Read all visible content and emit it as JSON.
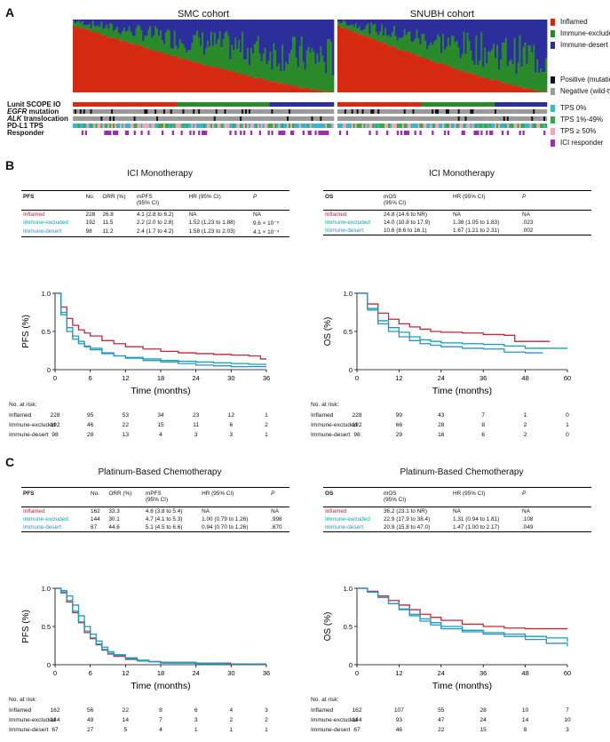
{
  "colors": {
    "inflamed": "#d42a12",
    "excluded": "#2a8a2a",
    "desert": "#2c2e9c",
    "km_inflamed": "#c0273b",
    "km_excluded": "#0aa5a8",
    "km_desert": "#2f8fd0",
    "positive": "#111111",
    "negative": "#9a9a9a",
    "tps0": "#3bb4c8",
    "tps1": "#3aa64a",
    "tps50": "#f2a9b5",
    "responder": "#9b2fb0"
  },
  "panel_a": {
    "letter": "A",
    "cohorts": [
      "SMC cohort",
      "SNUBH cohort"
    ],
    "legend_types": [
      "Inflamed",
      "Immune-excluded",
      "Immune-desert"
    ],
    "legend_mutation": [
      "Positive (mutation)",
      "Negative (wild-type)"
    ],
    "legend_tps": [
      "TPS 0%",
      "TPS 1%-49%",
      "TPS ≥ 50%",
      "ICI responder"
    ],
    "tracks": [
      "Lunit SCOPE IO",
      "EGFR",
      "mutation",
      "ALK",
      "translocation",
      "PD-L1 TPS",
      "Responder"
    ]
  },
  "panel_b": {
    "letter": "B",
    "pfs_title": "ICI Monotherapy",
    "os_title": "ICI Monotherapy",
    "pfs_table": {
      "headers": [
        "PFS",
        "No.",
        "ORR (%)",
        "mPFS",
        "(95% CI)",
        "HR (95% CI)",
        "P"
      ],
      "rows": [
        [
          "Inflamed",
          "228",
          "26.8",
          "4.1 (2.8 to 6.2)",
          "NA",
          "NA"
        ],
        [
          "Immune-excluded",
          "192",
          "11.5",
          "2.2 (2.0 to 2.8)",
          "1.52 (1.23 to 1.88)",
          "9.6 × 10⁻⁵"
        ],
        [
          "Immune-desert",
          "98",
          "11.2",
          "2.4 (1.7 to 4.2)",
          "1.58 (1.23 to 2.03)",
          "4.1 × 10⁻⁴"
        ]
      ]
    },
    "os_table": {
      "headers": [
        "OS",
        "mOS",
        "(95% CI)",
        "HR (95% CI)",
        "P"
      ],
      "rows": [
        [
          "Inflamed",
          "24.8 (14.6 to NR)",
          "NA",
          "NA"
        ],
        [
          "Immune-excluded",
          "14.0 (10.8 to 17.9)",
          "1.38 (1.05 to 1.83)",
          ".023"
        ],
        [
          "Immune-desert",
          "10.6 (8.6 to 16.1)",
          "1.67 (1.21 to 2.31)",
          ".002"
        ]
      ]
    },
    "pfs_risk": {
      "title": "No. at risk:",
      "rows": [
        {
          "label": "Inflamed",
          "values": [
            "228",
            "95",
            "53",
            "34",
            "23",
            "12",
            "1"
          ]
        },
        {
          "label": "Immune-excluded",
          "values": [
            "192",
            "46",
            "22",
            "15",
            "11",
            "6",
            "2"
          ]
        },
        {
          "label": "Immune-desert",
          "values": [
            "98",
            "28",
            "13",
            "4",
            "3",
            "3",
            "1"
          ]
        }
      ]
    },
    "os_risk": {
      "title": "No. at risk:",
      "rows": [
        {
          "label": "Inflamed",
          "values": [
            "228",
            "99",
            "43",
            "7",
            "1",
            "0"
          ]
        },
        {
          "label": "Immune-excluded",
          "values": [
            "192",
            "66",
            "28",
            "8",
            "2",
            "1"
          ]
        },
        {
          "label": "Immune-desert",
          "values": [
            "98",
            "29",
            "16",
            "6",
            "2",
            "0"
          ]
        }
      ]
    }
  },
  "panel_c": {
    "letter": "C",
    "pfs_title": "Platinum-Based Chemotherapy",
    "os_title": "Platinum-Based Chemotherapy",
    "pfs_table": {
      "headers": [
        "PFS",
        "No.",
        "ORR (%)",
        "mPFS",
        "(95% CI)",
        "HR (95% CI)",
        "P"
      ],
      "rows": [
        [
          "Inflamed",
          "162",
          "33.3",
          "4.6 (3.8 to 5.4)",
          "NA",
          "NA"
        ],
        [
          "Immune-excluded",
          "144",
          "30.1",
          "4.7 (4.1 to 5.3)",
          "1.00 (0.79 to 1.26)",
          ".998"
        ],
        [
          "Immune-desert",
          "67",
          "44.6",
          "5.1 (4.5 to 6.6)",
          "0.94 (0.70 to 1.26)",
          ".670"
        ]
      ]
    },
    "os_table": {
      "headers": [
        "OS",
        "mOS",
        "(95% CI)",
        "HR (95% CI)",
        "P"
      ],
      "rows": [
        [
          "Inflamed",
          "36.2 (23.1 to NR)",
          "NA",
          "NA"
        ],
        [
          "Immune-excluded",
          "22.9 (17.9 to 38.4)",
          "1.31 (0.94 to 1.81)",
          ".108"
        ],
        [
          "Immune-desert",
          "20.9 (15.8 to 47.0)",
          "1.47 (1.00 to 2.17)",
          ".049"
        ]
      ]
    },
    "pfs_risk": {
      "title": "No. at risk:",
      "rows": [
        {
          "label": "Inflamed",
          "values": [
            "162",
            "56",
            "22",
            "8",
            "6",
            "4",
            "3"
          ]
        },
        {
          "label": "Immune-excluded",
          "values": [
            "144",
            "49",
            "14",
            "7",
            "3",
            "2",
            "2"
          ]
        },
        {
          "label": "Immune-desert",
          "values": [
            "67",
            "27",
            "5",
            "4",
            "1",
            "1",
            "1"
          ]
        }
      ]
    },
    "os_risk": {
      "title": "No. at risk:",
      "rows": [
        {
          "label": "Inflamed",
          "values": [
            "162",
            "107",
            "55",
            "28",
            "10",
            "7"
          ]
        },
        {
          "label": "Immune-excluded",
          "values": [
            "144",
            "93",
            "47",
            "24",
            "14",
            "10"
          ]
        },
        {
          "label": "Immune-desert",
          "values": [
            "67",
            "46",
            "22",
            "15",
            "8",
            "3"
          ]
        }
      ]
    }
  },
  "chart_data": [
    {
      "type": "line",
      "title": "ICI Monotherapy",
      "xlabel": "Time (months)",
      "ylabel": "PFS (%)",
      "xlim": [
        0,
        36
      ],
      "ylim": [
        0,
        1.0
      ],
      "xticks": [
        0,
        6,
        12,
        18,
        24,
        30,
        36
      ],
      "yticks": [
        "1.0",
        "0.5",
        "0"
      ],
      "series": [
        {
          "name": "Inflamed",
          "x": [
            0,
            1,
            2,
            3,
            4,
            5,
            6,
            8,
            10,
            12,
            15,
            18,
            21,
            24,
            27,
            30,
            33,
            35,
            36
          ],
          "y": [
            1,
            0.82,
            0.67,
            0.58,
            0.52,
            0.48,
            0.44,
            0.38,
            0.34,
            0.3,
            0.27,
            0.24,
            0.22,
            0.21,
            0.2,
            0.19,
            0.18,
            0.14,
            0.14
          ]
        },
        {
          "name": "Immune-excluded",
          "x": [
            0,
            1,
            2,
            3,
            4,
            5,
            6,
            8,
            10,
            12,
            15,
            18,
            21,
            24,
            27,
            30,
            33,
            36
          ],
          "y": [
            1,
            0.72,
            0.5,
            0.4,
            0.34,
            0.3,
            0.26,
            0.21,
            0.18,
            0.16,
            0.14,
            0.12,
            0.11,
            0.1,
            0.09,
            0.08,
            0.07,
            0.07
          ]
        },
        {
          "name": "Immune-desert",
          "x": [
            0,
            1,
            2,
            3,
            4,
            5,
            6,
            8,
            10,
            12,
            15,
            18,
            21,
            24,
            27,
            30,
            33,
            36
          ],
          "y": [
            1,
            0.75,
            0.55,
            0.44,
            0.37,
            0.31,
            0.28,
            0.22,
            0.18,
            0.15,
            0.12,
            0.1,
            0.08,
            0.06,
            0.05,
            0.04,
            0.04,
            0.04
          ]
        }
      ]
    },
    {
      "type": "line",
      "title": "ICI Monotherapy",
      "xlabel": "Time (months)",
      "ylabel": "OS (%)",
      "xlim": [
        0,
        60
      ],
      "ylim": [
        0,
        1.0
      ],
      "xticks": [
        0,
        12,
        24,
        36,
        48,
        60
      ],
      "yticks": [
        "1.0",
        "0.5",
        "0"
      ],
      "series": [
        {
          "name": "Inflamed",
          "x": [
            0,
            3,
            6,
            9,
            12,
            15,
            18,
            21,
            24,
            30,
            36,
            42,
            45,
            48,
            55
          ],
          "y": [
            1,
            0.86,
            0.74,
            0.66,
            0.6,
            0.56,
            0.53,
            0.5,
            0.49,
            0.48,
            0.46,
            0.45,
            0.37,
            0.37,
            0.37
          ]
        },
        {
          "name": "Immune-excluded",
          "x": [
            0,
            3,
            6,
            9,
            12,
            15,
            18,
            21,
            24,
            30,
            36,
            42,
            48,
            52,
            60
          ],
          "y": [
            1,
            0.8,
            0.64,
            0.55,
            0.49,
            0.43,
            0.39,
            0.37,
            0.35,
            0.34,
            0.33,
            0.31,
            0.28,
            0.28,
            0.28
          ]
        },
        {
          "name": "Immune-desert",
          "x": [
            0,
            3,
            6,
            9,
            12,
            15,
            18,
            21,
            24,
            30,
            36,
            42,
            48,
            53
          ],
          "y": [
            1,
            0.78,
            0.6,
            0.5,
            0.43,
            0.38,
            0.34,
            0.32,
            0.3,
            0.28,
            0.27,
            0.23,
            0.22,
            0.22
          ]
        }
      ]
    },
    {
      "type": "line",
      "title": "Platinum-Based Chemotherapy",
      "xlabel": "Time (months)",
      "ylabel": "PFS (%)",
      "xlim": [
        0,
        36
      ],
      "ylim": [
        0,
        1.0
      ],
      "xticks": [
        0,
        6,
        12,
        18,
        24,
        30,
        36
      ],
      "yticks": [
        "1.0",
        "0.5",
        "0"
      ],
      "series": [
        {
          "name": "Inflamed",
          "x": [
            0,
            1,
            2,
            3,
            4,
            5,
            6,
            7,
            8,
            9,
            10,
            12,
            14,
            16,
            18,
            24,
            30
          ],
          "y": [
            1,
            0.94,
            0.82,
            0.68,
            0.55,
            0.42,
            0.34,
            0.26,
            0.19,
            0.14,
            0.11,
            0.07,
            0.05,
            0.04,
            0.03,
            0.02,
            0.02
          ]
        },
        {
          "name": "Immune-excluded",
          "x": [
            0,
            1,
            2,
            3,
            4,
            5,
            6,
            7,
            8,
            9,
            10,
            12,
            14,
            16,
            18,
            24,
            29
          ],
          "y": [
            1,
            0.95,
            0.84,
            0.7,
            0.56,
            0.44,
            0.35,
            0.27,
            0.2,
            0.15,
            0.12,
            0.08,
            0.05,
            0.04,
            0.03,
            0.02,
            0.02
          ]
        },
        {
          "name": "Immune-desert",
          "x": [
            0,
            1,
            2,
            3,
            4,
            5,
            6,
            7,
            8,
            9,
            10,
            12,
            14,
            16,
            18,
            24,
            36
          ],
          "y": [
            1,
            0.97,
            0.9,
            0.78,
            0.64,
            0.5,
            0.4,
            0.31,
            0.23,
            0.17,
            0.13,
            0.09,
            0.06,
            0.04,
            0.02,
            0.01,
            0.01
          ]
        }
      ]
    },
    {
      "type": "line",
      "title": "Platinum-Based Chemotherapy",
      "xlabel": "Time (months)",
      "ylabel": "OS (%)",
      "xlim": [
        0,
        60
      ],
      "ylim": [
        0,
        1.0
      ],
      "xticks": [
        0,
        12,
        24,
        36,
        48,
        60
      ],
      "yticks": [
        "1.0",
        "0.5",
        "0"
      ],
      "series": [
        {
          "name": "Inflamed",
          "x": [
            0,
            3,
            6,
            9,
            12,
            15,
            18,
            21,
            24,
            30,
            36,
            42,
            48,
            54,
            60
          ],
          "y": [
            1,
            0.96,
            0.9,
            0.84,
            0.78,
            0.72,
            0.66,
            0.62,
            0.58,
            0.53,
            0.5,
            0.48,
            0.47,
            0.47,
            0.47
          ]
        },
        {
          "name": "Immune-excluded",
          "x": [
            0,
            3,
            6,
            9,
            12,
            15,
            18,
            21,
            24,
            30,
            36,
            42,
            48,
            54,
            60
          ],
          "y": [
            1,
            0.95,
            0.88,
            0.8,
            0.73,
            0.66,
            0.6,
            0.55,
            0.5,
            0.45,
            0.42,
            0.4,
            0.37,
            0.35,
            0.3
          ]
        },
        {
          "name": "Immune-desert",
          "x": [
            0,
            3,
            6,
            9,
            12,
            15,
            18,
            21,
            24,
            30,
            36,
            42,
            48,
            54,
            60
          ],
          "y": [
            1,
            0.95,
            0.88,
            0.8,
            0.72,
            0.64,
            0.57,
            0.52,
            0.47,
            0.43,
            0.4,
            0.37,
            0.33,
            0.28,
            0.24
          ]
        }
      ]
    }
  ]
}
